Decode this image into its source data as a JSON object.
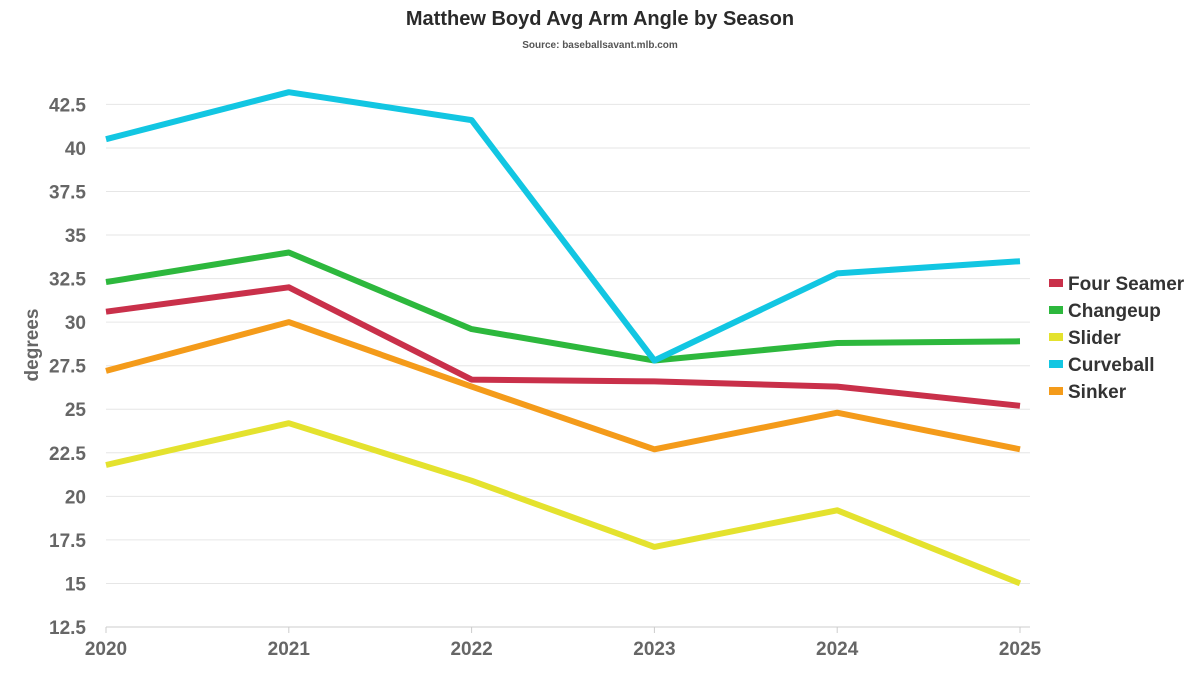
{
  "chart_data": {
    "type": "line",
    "title": "Matthew Boyd Avg Arm Angle by Season",
    "subtitle": "Source: baseballsavant.mlb.com",
    "xlabel": "",
    "ylabel": "degrees",
    "x": [
      "2020",
      "2021",
      "2022",
      "2023",
      "2024",
      "2025"
    ],
    "ylim": [
      12.5,
      43.9
    ],
    "yticks": [
      "12.5",
      "15",
      "17.5",
      "20",
      "22.5",
      "25",
      "27.5",
      "30",
      "32.5",
      "35",
      "37.5",
      "40",
      "42.5"
    ],
    "grid": true,
    "legend_position": "right",
    "series": [
      {
        "name": "Four Seamer",
        "color": "#c9304a",
        "values": [
          30.6,
          32.0,
          26.7,
          26.6,
          26.3,
          25.2
        ]
      },
      {
        "name": "Changeup",
        "color": "#2db83d",
        "values": [
          32.3,
          34.0,
          29.6,
          27.8,
          28.8,
          28.9
        ]
      },
      {
        "name": "Slider",
        "color": "#e4e22e",
        "values": [
          21.8,
          24.2,
          20.9,
          17.1,
          19.2,
          15.0
        ]
      },
      {
        "name": "Curveball",
        "color": "#12c6e2",
        "values": [
          40.5,
          43.2,
          41.6,
          27.8,
          32.8,
          33.5
        ]
      },
      {
        "name": "Sinker",
        "color": "#f49b1a",
        "values": [
          27.2,
          30.0,
          26.3,
          22.7,
          24.8,
          22.7
        ]
      }
    ]
  }
}
